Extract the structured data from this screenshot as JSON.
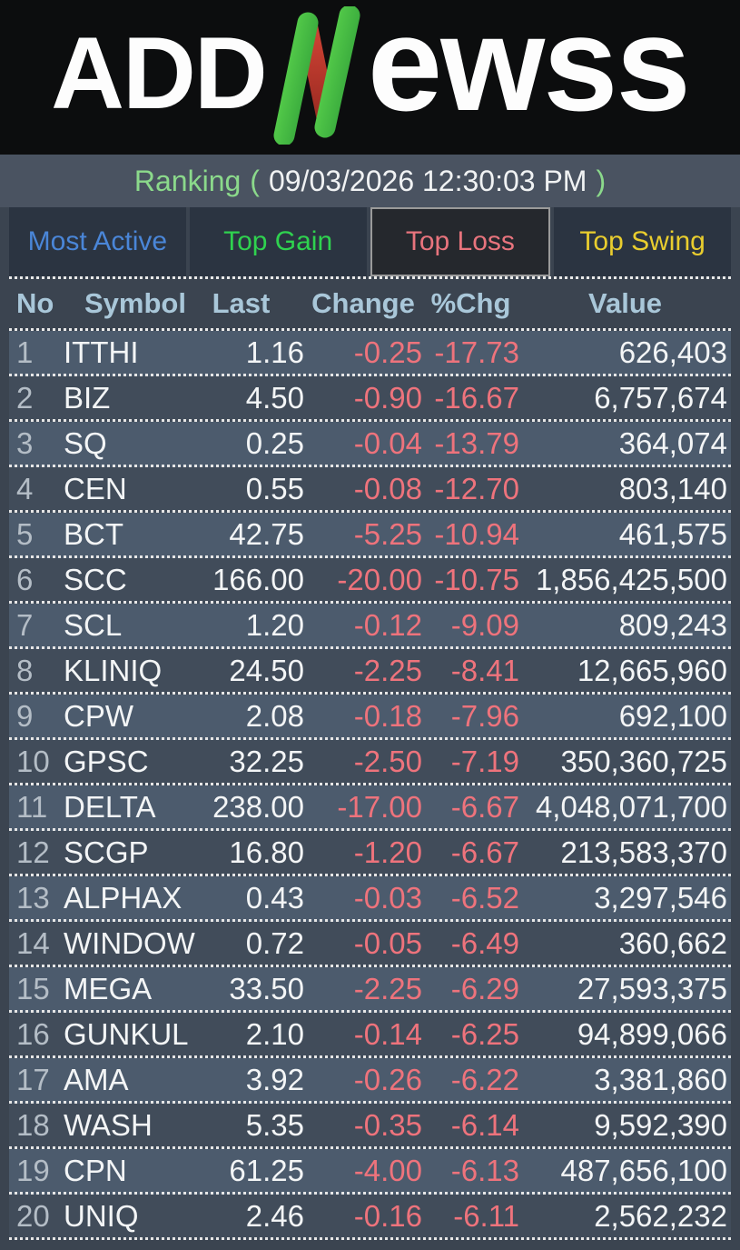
{
  "logo": {
    "part1": "ADD",
    "part2": "ewss",
    "n_green_light": "#5fd84f",
    "n_green_dark": "#2f9e38",
    "n_red_light": "#d14435",
    "n_red_dark": "#9c2b22"
  },
  "title": {
    "label": "Ranking",
    "open_paren": "(",
    "timestamp": "09/03/2026 12:30:03 PM",
    "close_paren": ")"
  },
  "tabs": [
    {
      "label": "Most Active",
      "color": "#4a86d8",
      "active": false
    },
    {
      "label": "Top Gain",
      "color": "#2fd24f",
      "active": false
    },
    {
      "label": "Top Loss",
      "color": "#e8747d",
      "active": true
    },
    {
      "label": "Top Swing",
      "color": "#e9cd2e",
      "active": false
    }
  ],
  "table": {
    "columns": [
      "No",
      "Symbol",
      "Last",
      "Change",
      "%Chg",
      "Value"
    ],
    "rows": [
      {
        "no": "1",
        "symbol": "ITTHI",
        "last": "1.16",
        "change": "-0.25",
        "pchg": "-17.73",
        "value": "626,403"
      },
      {
        "no": "2",
        "symbol": "BIZ",
        "last": "4.50",
        "change": "-0.90",
        "pchg": "-16.67",
        "value": "6,757,674"
      },
      {
        "no": "3",
        "symbol": "SQ",
        "last": "0.25",
        "change": "-0.04",
        "pchg": "-13.79",
        "value": "364,074"
      },
      {
        "no": "4",
        "symbol": "CEN",
        "last": "0.55",
        "change": "-0.08",
        "pchg": "-12.70",
        "value": "803,140"
      },
      {
        "no": "5",
        "symbol": "BCT",
        "last": "42.75",
        "change": "-5.25",
        "pchg": "-10.94",
        "value": "461,575"
      },
      {
        "no": "6",
        "symbol": "SCC",
        "last": "166.00",
        "change": "-20.00",
        "pchg": "-10.75",
        "value": "1,856,425,500"
      },
      {
        "no": "7",
        "symbol": "SCL",
        "last": "1.20",
        "change": "-0.12",
        "pchg": "-9.09",
        "value": "809,243"
      },
      {
        "no": "8",
        "symbol": "KLINIQ",
        "last": "24.50",
        "change": "-2.25",
        "pchg": "-8.41",
        "value": "12,665,960"
      },
      {
        "no": "9",
        "symbol": "CPW",
        "last": "2.08",
        "change": "-0.18",
        "pchg": "-7.96",
        "value": "692,100"
      },
      {
        "no": "10",
        "symbol": "GPSC",
        "last": "32.25",
        "change": "-2.50",
        "pchg": "-7.19",
        "value": "350,360,725"
      },
      {
        "no": "11",
        "symbol": "DELTA",
        "last": "238.00",
        "change": "-17.00",
        "pchg": "-6.67",
        "value": "4,048,071,700"
      },
      {
        "no": "12",
        "symbol": "SCGP",
        "last": "16.80",
        "change": "-1.20",
        "pchg": "-6.67",
        "value": "213,583,370"
      },
      {
        "no": "13",
        "symbol": "ALPHAX",
        "last": "0.43",
        "change": "-0.03",
        "pchg": "-6.52",
        "value": "3,297,546"
      },
      {
        "no": "14",
        "symbol": "WINDOW",
        "last": "0.72",
        "change": "-0.05",
        "pchg": "-6.49",
        "value": "360,662"
      },
      {
        "no": "15",
        "symbol": "MEGA",
        "last": "33.50",
        "change": "-2.25",
        "pchg": "-6.29",
        "value": "27,593,375"
      },
      {
        "no": "16",
        "symbol": "GUNKUL",
        "last": "2.10",
        "change": "-0.14",
        "pchg": "-6.25",
        "value": "94,899,066"
      },
      {
        "no": "17",
        "symbol": "AMA",
        "last": "3.92",
        "change": "-0.26",
        "pchg": "-6.22",
        "value": "3,381,860"
      },
      {
        "no": "18",
        "symbol": "WASH",
        "last": "5.35",
        "change": "-0.35",
        "pchg": "-6.14",
        "value": "9,592,390"
      },
      {
        "no": "19",
        "symbol": "CPN",
        "last": "61.25",
        "change": "-4.00",
        "pchg": "-6.13",
        "value": "487,656,100"
      },
      {
        "no": "20",
        "symbol": "UNIQ",
        "last": "2.46",
        "change": "-0.16",
        "pchg": "-6.11",
        "value": "2,562,232"
      }
    ]
  },
  "colors": {
    "page_bg": "#3b4450",
    "title_bar_bg": "#4a5361",
    "tab_bg": "#2b3441",
    "tab_active_bg": "#25282d",
    "tab_active_border": "#9a9a9a",
    "row_odd_bg": "#4c5b6d",
    "row_even_bg": "#414c5a",
    "header_text": "#a9c7d9",
    "negative_value": "#ee737c",
    "white_text": "#f3f5f6",
    "row_number_text": "#b4bdc6"
  }
}
